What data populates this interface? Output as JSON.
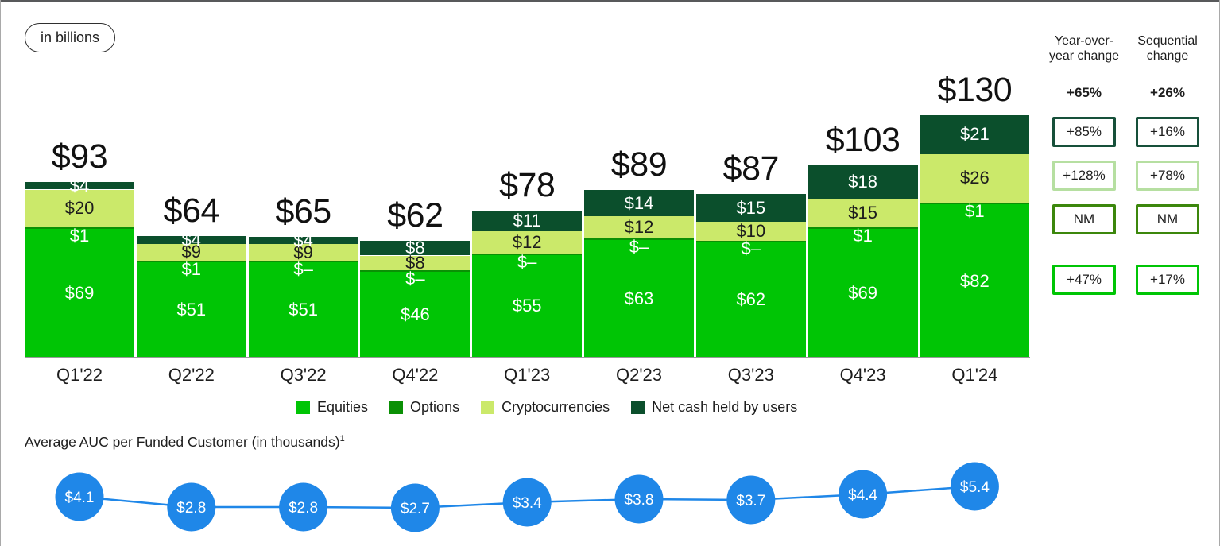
{
  "unit_badge": "in billions",
  "colors": {
    "equities": "#00c505",
    "options": "#0a9005",
    "crypto": "#cbe96a",
    "net_cash": "#0b4f2c",
    "line_blue": "#1f87e8",
    "top_rule": "#58595b",
    "box_borders": {
      "net_cash": "#17503a",
      "crypto": "#b6dfa1",
      "options": "#3c870c",
      "equities": "#00c505"
    }
  },
  "chart_data": [
    {
      "type": "bar",
      "stacked": true,
      "unit": "in billions",
      "categories": [
        "Q1'22",
        "Q2'22",
        "Q3'22",
        "Q4'22",
        "Q1'23",
        "Q2'23",
        "Q3'23",
        "Q4'23",
        "Q1'24"
      ],
      "totals": [
        93,
        64,
        65,
        62,
        78,
        89,
        87,
        103,
        130
      ],
      "total_labels": [
        "$93",
        "$64",
        "$65",
        "$62",
        "$78",
        "$89",
        "$87",
        "$103",
        "$130"
      ],
      "series": [
        {
          "name": "Equities",
          "color_key": "equities",
          "values": [
            69,
            51,
            51,
            46,
            55,
            63,
            62,
            69,
            82
          ],
          "labels": [
            "$69",
            "$51",
            "$51",
            "$46",
            "$55",
            "$63",
            "$62",
            "$69",
            "$82"
          ]
        },
        {
          "name": "Options",
          "color_key": "options",
          "values": [
            1,
            1,
            0,
            0,
            0,
            0,
            0,
            1,
            1
          ],
          "labels": [
            "$1",
            "$1",
            "$–",
            "$–",
            "$–",
            "$–",
            "$–",
            "$1",
            "$1"
          ]
        },
        {
          "name": "Cryptocurrencies",
          "color_key": "crypto",
          "values": [
            20,
            9,
            9,
            8,
            12,
            12,
            10,
            15,
            26
          ],
          "labels": [
            "$20",
            "$9",
            "$9",
            "$8",
            "$12",
            "$12",
            "$10",
            "$15",
            "$26"
          ]
        },
        {
          "name": "Net cash held by users",
          "color_key": "net_cash",
          "values": [
            4,
            4,
            4,
            8,
            11,
            14,
            15,
            18,
            21
          ],
          "labels": [
            "$4",
            "$4",
            "$4",
            "$8",
            "$11",
            "$14",
            "$15",
            "$18",
            "$21"
          ]
        }
      ],
      "legend_position": "bottom",
      "grid": false
    },
    {
      "type": "line",
      "title": "Average AUC per Funded Customer (in thousands)",
      "title_superscript": "1",
      "x": [
        "Q1'22",
        "Q2'22",
        "Q3'22",
        "Q4'22",
        "Q1'23",
        "Q2'23",
        "Q3'23",
        "Q4'23",
        "Q1'24"
      ],
      "values": [
        4.1,
        2.8,
        2.8,
        2.7,
        3.4,
        3.8,
        3.7,
        4.4,
        5.4
      ],
      "labels": [
        "$4.1",
        "$2.8",
        "$2.8",
        "$2.7",
        "$3.4",
        "$3.8",
        "$3.7",
        "$4.4",
        "$5.4"
      ]
    }
  ],
  "change_panel": {
    "columns": [
      {
        "header": "Year-over-\nyear change",
        "total": "+65%",
        "boxes": [
          {
            "series": "net_cash",
            "label": "+85%"
          },
          {
            "series": "crypto",
            "label": "+128%"
          },
          {
            "series": "options",
            "label": "NM"
          },
          {
            "series": "equities",
            "label": "+47%"
          }
        ]
      },
      {
        "header": "Sequential\nchange",
        "total": "+26%",
        "boxes": [
          {
            "series": "net_cash",
            "label": "+16%"
          },
          {
            "series": "crypto",
            "label": "+78%"
          },
          {
            "series": "options",
            "label": "NM"
          },
          {
            "series": "equities",
            "label": "+17%"
          }
        ]
      }
    ]
  }
}
